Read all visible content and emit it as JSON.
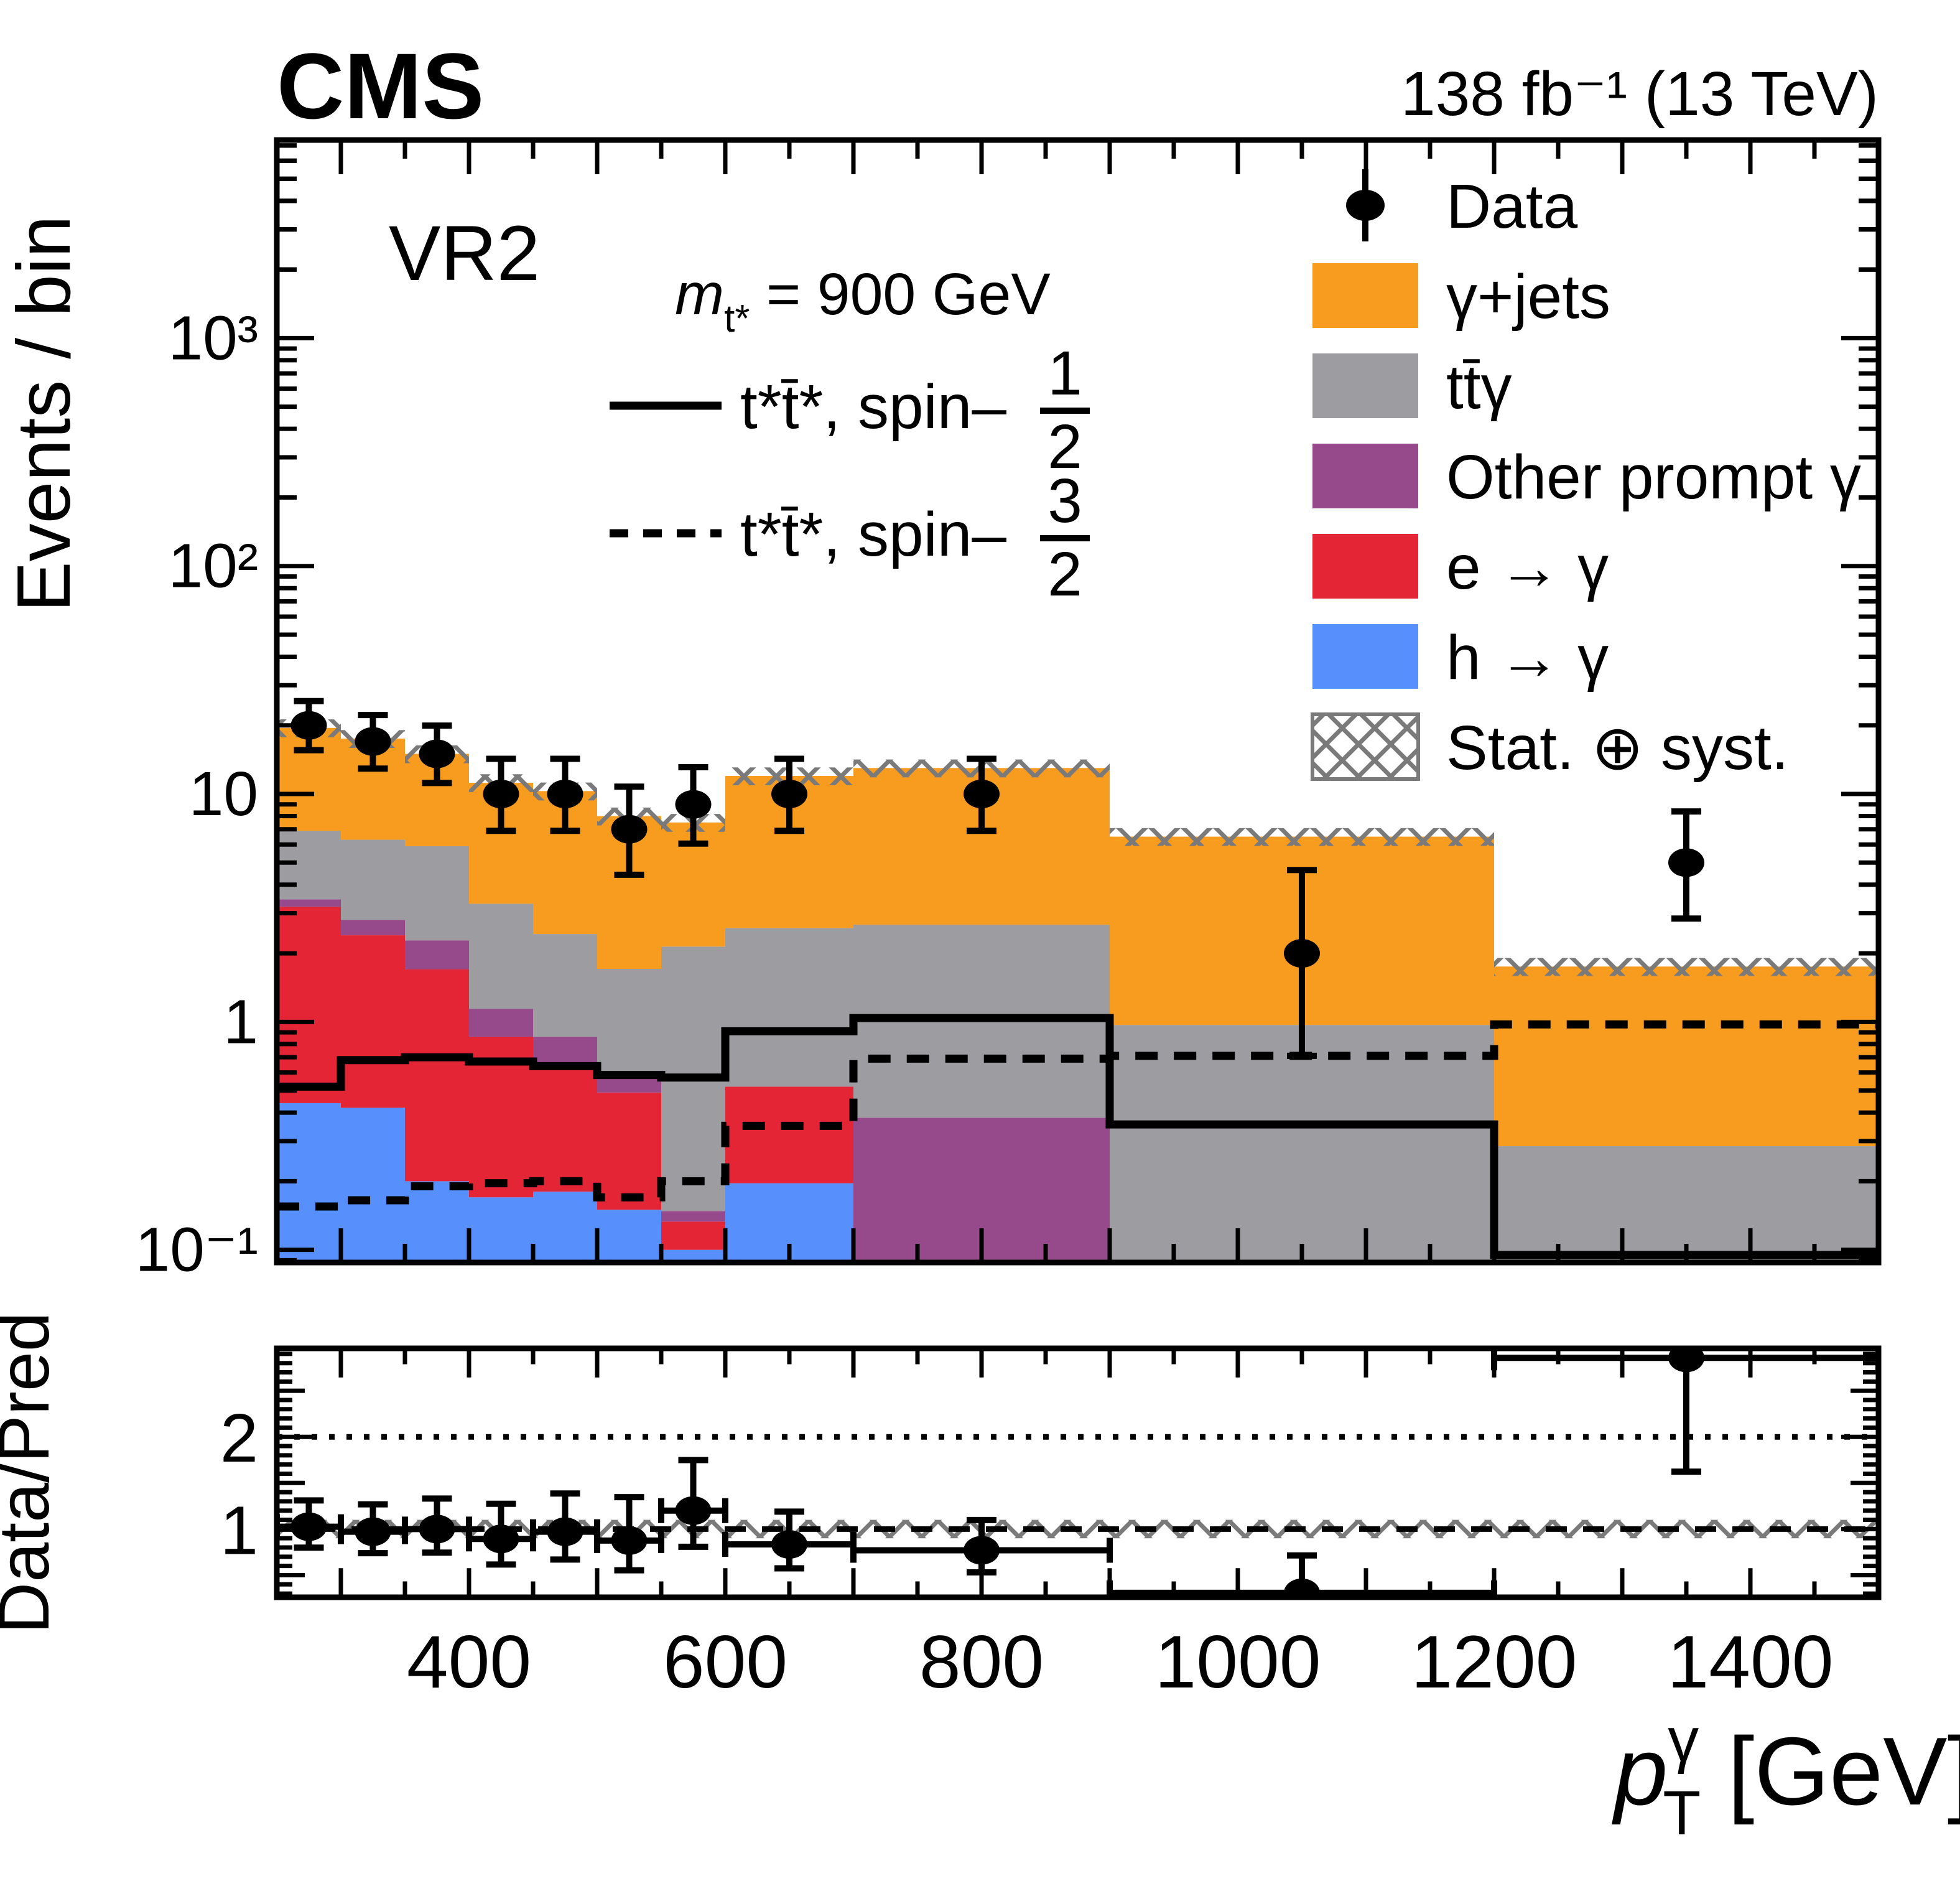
{
  "header": {
    "experiment": "CMS",
    "lumi": "138 fb⁻¹ (13 TeV)"
  },
  "plot": {
    "region": "VR2",
    "ylabel": "Events / bin",
    "ratio_ylabel": "Data/Pred",
    "mass": {
      "prefix": "m",
      "sub": "t*",
      "rest": " = 900 GeV"
    },
    "xtitle": {
      "base": "p",
      "sup": "γ",
      "sub": "T",
      "rest": " [GeV]"
    }
  },
  "colors": {
    "gjets": "#F89C20",
    "ttgamma": "#9C9CA1",
    "other": "#964A8B",
    "egamma": "#E42536",
    "hgamma": "#5790FC",
    "hatch": "#7A7A7A",
    "marker": "#000000"
  },
  "legend": {
    "data_label": "Data",
    "entries": [
      {
        "key": "gjets",
        "label": "γ+jets"
      },
      {
        "key": "ttgamma",
        "label": "tt̄γ"
      },
      {
        "key": "other",
        "label": "Other prompt γ"
      },
      {
        "key": "egamma",
        "label": "e → γ"
      },
      {
        "key": "hgamma",
        "label": "h → γ"
      }
    ],
    "uncertainty_label": "Stat. ⊕ syst.",
    "signal": [
      {
        "style": "solid",
        "label": "t*t̄*, spin–",
        "num": "1",
        "den": "2"
      },
      {
        "style": "dashed",
        "label": "t*t̄*, spin–",
        "num": "3",
        "den": "2"
      }
    ]
  },
  "chart_data": {
    "type": "bar",
    "subtype": "stacked-histogram-with-ratio",
    "title": "VR2, m_t* = 900 GeV",
    "xlabel": "pT(gamma) [GeV]",
    "ylabel": "Events / bin",
    "x_scale": "linear",
    "y_scale": "log",
    "xlim": [
      250,
      1500
    ],
    "ylim": [
      0.088,
      7400
    ],
    "ratio_ylim": [
      0.26,
      2.96
    ],
    "x_edges": [
      250,
      300,
      350,
      400,
      450,
      500,
      550,
      600,
      700,
      900,
      1200,
      1500
    ],
    "x_tick_labels": [
      400,
      600,
      800,
      1000,
      1200,
      1400
    ],
    "y_tick_labels": [
      {
        "v": 0.1,
        "t": "10⁻¹"
      },
      {
        "v": 1,
        "t": "1"
      },
      {
        "v": 10,
        "t": "10"
      },
      {
        "v": 100,
        "t": "10²"
      },
      {
        "v": 1000,
        "t": "10³"
      }
    ],
    "ratio_tick_labels": [
      {
        "v": 1,
        "t": "1"
      },
      {
        "v": 2,
        "t": "2"
      }
    ],
    "stack_order": [
      "hgamma",
      "egamma",
      "other",
      "ttgamma",
      "gjets"
    ],
    "stack_cumulative_tops": {
      "hgamma": [
        0.44,
        0.42,
        0.2,
        0.17,
        0.18,
        0.15,
        0.1,
        0.196,
        0.04,
        0.04,
        0.04
      ],
      "egamma": [
        3.2,
        2.4,
        1.7,
        0.86,
        0.65,
        0.49,
        0.133,
        0.52,
        0.04,
        0.04,
        0.04
      ],
      "other": [
        3.45,
        2.8,
        2.28,
        1.14,
        0.86,
        0.57,
        0.148,
        0.52,
        0.38,
        0.04,
        0.04
      ],
      "ttgamma": [
        6.9,
        6.3,
        5.9,
        3.3,
        2.43,
        1.71,
        2.14,
        2.58,
        2.67,
        0.97,
        0.285
      ],
      "gjets": [
        19.5,
        17.5,
        15.0,
        11.2,
        10.3,
        8.0,
        7.5,
        12.0,
        13.0,
        6.5,
        1.75
      ]
    },
    "total_prediction": [
      19.5,
      17.5,
      15.0,
      11.2,
      10.3,
      8.0,
      7.5,
      12.0,
      13.0,
      6.5,
      1.75
    ],
    "uncertainty_fraction": 0.09,
    "data_points": {
      "x": [
        275,
        325,
        375,
        425,
        475,
        525,
        575,
        650,
        800,
        1050,
        1350
      ],
      "y": [
        20,
        17,
        15,
        10,
        10,
        7,
        9,
        10,
        10,
        2,
        5
      ],
      "err_up": [
        5.55,
        5.2,
        4.96,
        4.27,
        4.27,
        3.77,
        4.11,
        4.27,
        4.27,
        2.64,
        3.38
      ],
      "err_dn": [
        4.43,
        4.08,
        3.83,
        3.11,
        3.11,
        2.58,
        2.94,
        3.11,
        3.11,
        1.29,
        2.16
      ]
    },
    "signal_histograms": [
      {
        "name": "ttbar-star-spin-1/2",
        "style": "solid",
        "values": [
          0.52,
          0.68,
          0.7,
          0.67,
          0.64,
          0.585,
          0.57,
          0.91,
          1.04,
          0.355,
          0.095
        ]
      },
      {
        "name": "ttbar-star-spin-3/2",
        "style": "dashed",
        "values": [
          0.155,
          0.165,
          0.19,
          0.196,
          0.2,
          0.17,
          0.2,
          0.35,
          0.69,
          0.71,
          0.975
        ]
      }
    ],
    "ratio_band_halfwidth": 0.1,
    "ratio_reference_lines": [
      {
        "y": 1,
        "style": "dashed"
      },
      {
        "y": 2,
        "style": "dotted"
      }
    ]
  }
}
